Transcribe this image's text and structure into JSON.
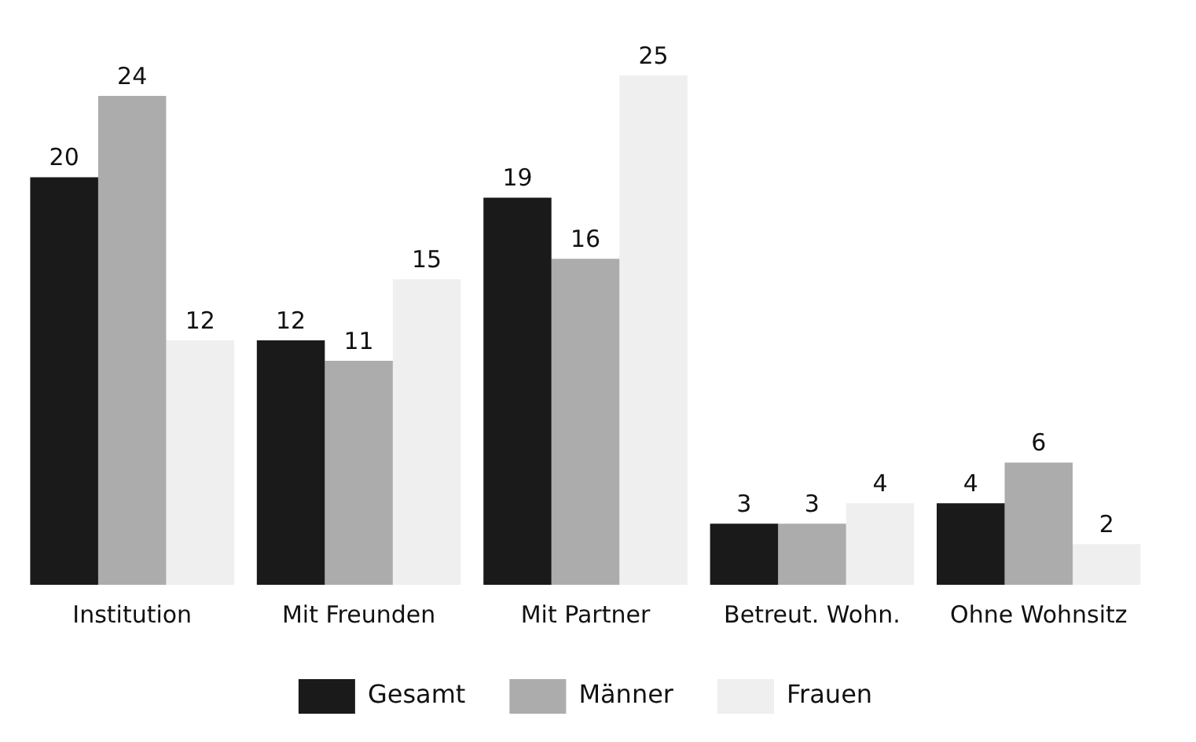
{
  "chart_data": {
    "type": "bar",
    "categories": [
      "Institution",
      "Mit Freunden",
      "Mit Partner",
      "Betreut. Wohn.",
      "Ohne Wohnsitz"
    ],
    "series": [
      {
        "name": "Gesamt",
        "color": "#1a1a1a",
        "values": [
          20,
          12,
          19,
          3,
          4
        ]
      },
      {
        "name": "Männer",
        "color": "#acacac",
        "values": [
          24,
          11,
          16,
          3,
          6
        ]
      },
      {
        "name": "Frauen",
        "color": "#efefef",
        "values": [
          12,
          15,
          25,
          4,
          2
        ]
      }
    ],
    "data_labels": true,
    "grid": false,
    "legend": "bottom"
  }
}
